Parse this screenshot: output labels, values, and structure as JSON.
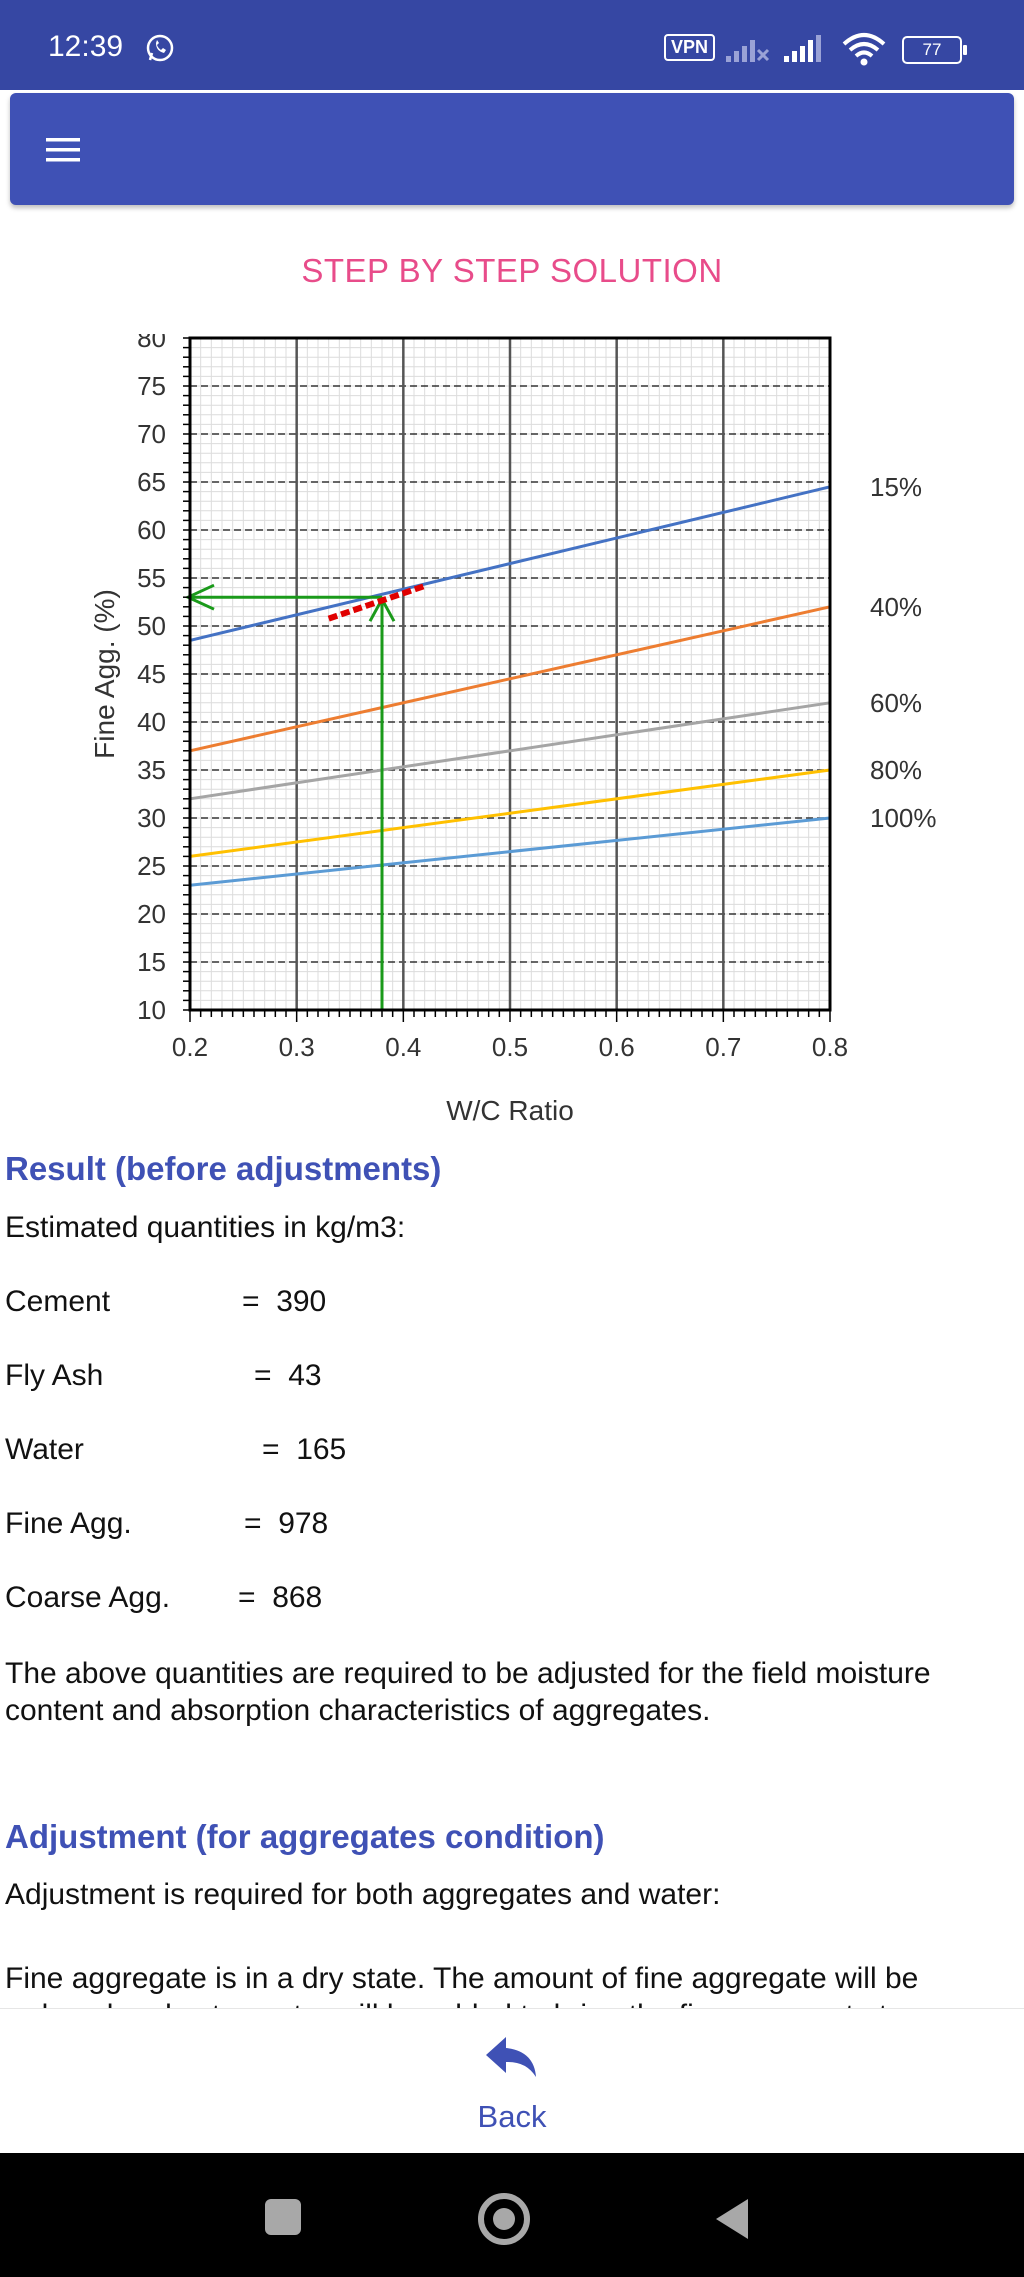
{
  "status_bar": {
    "time": "12:39",
    "vpn": "VPN",
    "battery": "77",
    "icons": [
      "whatsapp-icon",
      "vpn-icon",
      "signal-icon",
      "wifi-icon",
      "battery-icon"
    ]
  },
  "app_bar": {
    "menu_icon": "hamburger-menu-icon"
  },
  "page_title": "STEP BY STEP SOLUTION",
  "chart_data": {
    "type": "line",
    "xlabel": "W/C Ratio",
    "ylabel": "Fine Agg. (%)",
    "xlim": [
      0.2,
      0.8
    ],
    "ylim": [
      10,
      80
    ],
    "x_ticks": [
      "0.2",
      "0.3",
      "0.4",
      "0.5",
      "0.6",
      "0.7",
      "0.8"
    ],
    "y_ticks": [
      "80",
      "75",
      "70",
      "65",
      "60",
      "55",
      "50",
      "45",
      "40",
      "35",
      "30",
      "25",
      "20",
      "15",
      "10"
    ],
    "grid": true,
    "series": [
      {
        "name": "15%",
        "color": "#4472c4",
        "x": [
          0.2,
          0.8
        ],
        "y": [
          48.5,
          64.5
        ]
      },
      {
        "name": "40%",
        "color": "#ed7d31",
        "x": [
          0.2,
          0.8
        ],
        "y": [
          37,
          52
        ]
      },
      {
        "name": "60%",
        "color": "#a5a5a5",
        "x": [
          0.2,
          0.8
        ],
        "y": [
          32,
          42
        ]
      },
      {
        "name": "80%",
        "color": "#ffc000",
        "x": [
          0.2,
          0.8
        ],
        "y": [
          26,
          35
        ]
      },
      {
        "name": "100%",
        "color": "#5b9bd5",
        "x": [
          0.2,
          0.8
        ],
        "y": [
          23,
          30
        ]
      }
    ],
    "annotation": {
      "x": 0.38,
      "y": 53,
      "arrow_color": "#1a9a1a",
      "marker_color": "#e00000",
      "marker_x": [
        0.33,
        0.42
      ]
    }
  },
  "result": {
    "heading": "Result (before adjustments)",
    "subtitle": "Estimated quantities in kg/m3:",
    "quantities": [
      {
        "label": "Cement",
        "value": "=  390"
      },
      {
        "label": "Fly Ash",
        "value": "=  43"
      },
      {
        "label": "Water",
        "value": "=  165"
      },
      {
        "label": "Fine Agg.",
        "value": "=  978"
      },
      {
        "label": "Coarse Agg.",
        "value": "=  868"
      }
    ],
    "note": "The above quantities are required to be adjusted for the field moisture content and absorption characteristics of aggregates."
  },
  "adjustment": {
    "heading": "Adjustment (for aggregates condition)",
    "subtitle": "Adjustment is required for both aggregates and water:",
    "paragraph": "Fine aggregate is in a dry state.  The amount of fine aggregate will be reduced and extra water will be added to bring the fine aggregate to"
  },
  "bottom": {
    "back_label": "Back"
  },
  "nav": {
    "icons": [
      "recents-icon",
      "home-icon",
      "back-nav-icon"
    ]
  }
}
